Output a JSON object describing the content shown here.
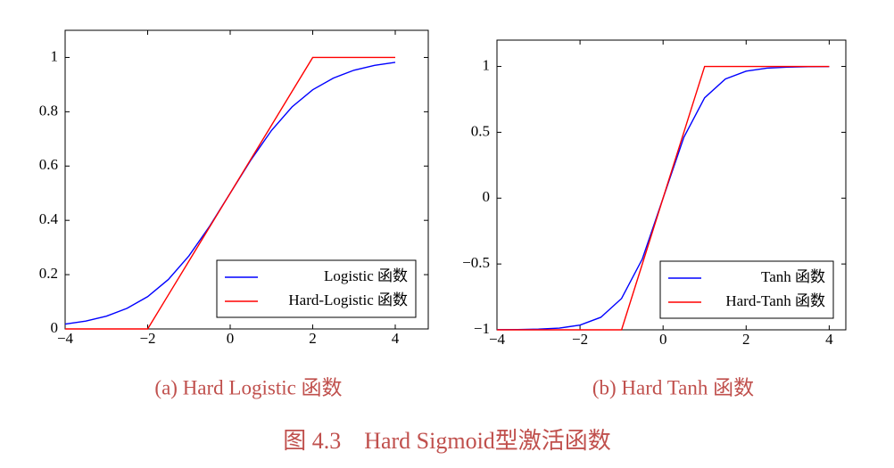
{
  "caption": "图 4.3　Hard Sigmoid型激活函数",
  "chart_data": [
    {
      "type": "line",
      "title": "(a) Hard Logistic 函数",
      "x": [
        -4,
        -3.5,
        -3,
        -2.5,
        -2,
        -1.5,
        -1,
        -0.5,
        0,
        0.5,
        1,
        1.5,
        2,
        2.5,
        3,
        3.5,
        4
      ],
      "series": [
        {
          "name": "Logistic 函数",
          "color": "#0000ff",
          "values": [
            0.018,
            0.029,
            0.047,
            0.076,
            0.119,
            0.182,
            0.269,
            0.378,
            0.5,
            0.622,
            0.731,
            0.818,
            0.881,
            0.924,
            0.953,
            0.971,
            0.982
          ]
        },
        {
          "name": "Hard-Logistic 函数",
          "color": "#ff0000",
          "values": [
            0,
            0,
            0,
            0,
            0,
            0.125,
            0.25,
            0.375,
            0.5,
            0.625,
            0.75,
            0.875,
            1,
            1,
            1,
            1,
            1
          ]
        }
      ],
      "xlim": [
        -4,
        4.8
      ],
      "ylim": [
        0,
        1.1
      ],
      "xticks": [
        {
          "value": -4,
          "label": "−4"
        },
        {
          "value": -2,
          "label": "−2"
        },
        0,
        2,
        4
      ],
      "yticks": [
        0,
        0.2,
        0.4,
        0.6,
        0.8,
        1
      ],
      "legend": "lower right"
    },
    {
      "type": "line",
      "title": "(b) Hard Tanh 函数",
      "x": [
        -4,
        -3.5,
        -3,
        -2.5,
        -2,
        -1.5,
        -1,
        -0.5,
        0,
        0.5,
        1,
        1.5,
        2,
        2.5,
        3,
        3.5,
        4
      ],
      "series": [
        {
          "name": "Tanh 函数",
          "color": "#0000ff",
          "values": [
            -0.999,
            -0.998,
            -0.995,
            -0.987,
            -0.964,
            -0.905,
            -0.762,
            -0.462,
            0,
            0.462,
            0.762,
            0.905,
            0.964,
            0.987,
            0.995,
            0.998,
            0.999
          ]
        },
        {
          "name": "Hard-Tanh 函数",
          "color": "#ff0000",
          "values": [
            -1,
            -1,
            -1,
            -1,
            -1,
            -1,
            -1,
            -0.5,
            0,
            0.5,
            1,
            1,
            1,
            1,
            1,
            1,
            1
          ]
        }
      ],
      "xlim": [
        -4,
        4.4
      ],
      "ylim": [
        -1,
        1.2
      ],
      "xticks": [
        {
          "value": -4,
          "label": "−4"
        },
        {
          "value": -2,
          "label": "−2"
        },
        0,
        2,
        4
      ],
      "yticks": [
        {
          "value": -1,
          "label": "−1"
        },
        {
          "value": -0.5,
          "label": "−0.5"
        },
        0,
        0.5,
        1
      ],
      "legend": "lower right"
    }
  ]
}
